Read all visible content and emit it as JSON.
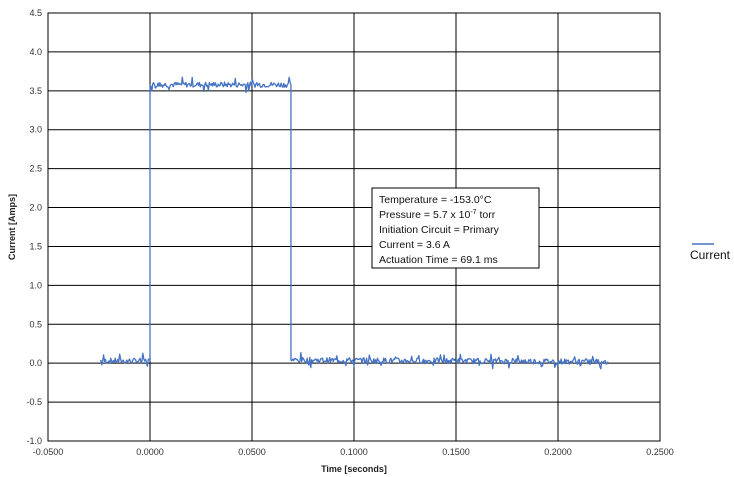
{
  "chart_data": {
    "type": "line",
    "xlabel": "Time [seconds]",
    "ylabel": "Current [Amps]",
    "xlim": [
      -0.05,
      0.25
    ],
    "ylim": [
      -1.0,
      4.5
    ],
    "x_ticks": [
      "-0.0500",
      "0.0000",
      "0.0500",
      "0.1000",
      "0.1500",
      "0.2000",
      "0.2500"
    ],
    "y_ticks": [
      "-1.0",
      "-0.5",
      "0.0",
      "0.5",
      "1.0",
      "1.5",
      "2.0",
      "2.5",
      "3.0",
      "3.5",
      "4.0",
      "4.5"
    ],
    "grid": true,
    "legend": {
      "position": "right",
      "entries": [
        "Current"
      ]
    },
    "series": [
      {
        "name": "Current",
        "color": "#4472C4",
        "x": [
          -0.0245,
          0.0,
          0.0,
          0.0691,
          0.0691,
          0.2245
        ],
        "y": [
          0.03,
          0.03,
          3.58,
          3.58,
          0.04,
          0.02
        ]
      }
    ],
    "annotation": {
      "temperature": "Temperature = -153.0°C",
      "pressure_prefix": "Pressure = 5.7 x 10",
      "pressure_exponent": "-7",
      "pressure_suffix": " torr",
      "circuit": "Initiation Circuit = Primary",
      "current": "Current = 3.6 A",
      "actuation": "Actuation Time = 69.1 ms"
    }
  }
}
